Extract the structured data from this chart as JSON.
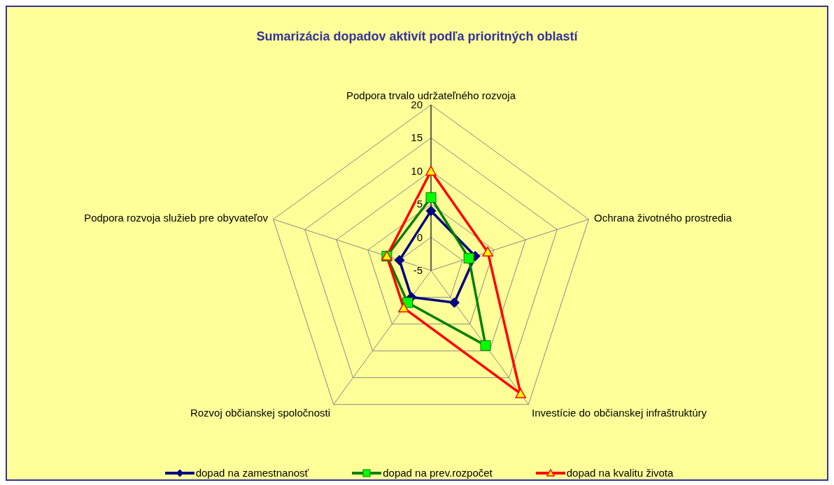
{
  "chart_data": {
    "type": "radar",
    "title": "Sumarizácia dopadov aktivít podľa prioritných oblastí",
    "categories": [
      "Podpora trvalo udržateľného rozvoja",
      "Ochrana životného prostredia",
      "Investície do občianskej infraštruktúry",
      "Rozvoj občianskej spoločnosti",
      "Podpora rozvoja služieb pre obyvateľov"
    ],
    "series": [
      {
        "name": "dopad na zamestnanosť",
        "color": "#000080",
        "marker": "diamond",
        "values": [
          4,
          2,
          1,
          0,
          0
        ]
      },
      {
        "name": "dopad na prev.rozpočet",
        "color": "#008000",
        "marker": "square",
        "values": [
          6,
          1,
          9,
          1,
          2
        ]
      },
      {
        "name": "dopad na kvalitu života",
        "color": "#ff0000",
        "marker": "triangle",
        "values": [
          10,
          4,
          18,
          2,
          2
        ]
      }
    ],
    "ylim": [
      -5,
      20
    ],
    "yticks": [
      -5,
      0,
      5,
      10,
      15,
      20
    ],
    "grid": true,
    "legend": "bottom"
  }
}
